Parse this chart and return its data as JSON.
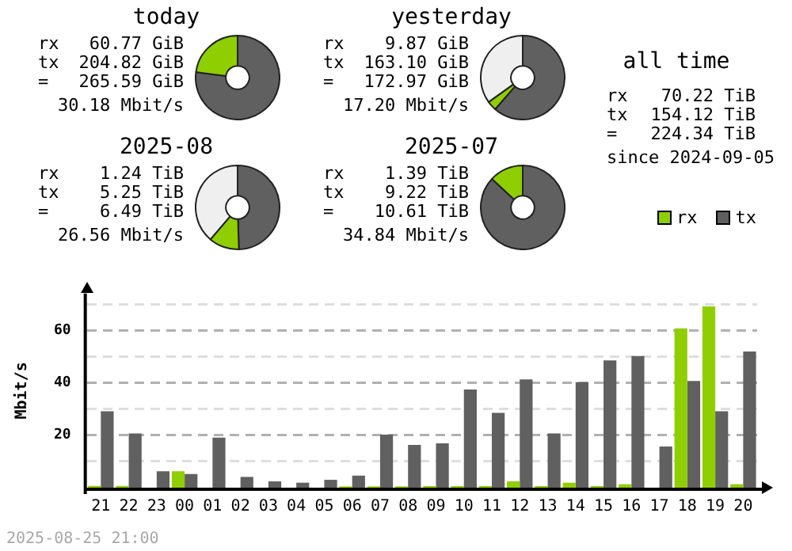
{
  "chart_data": [
    {
      "type": "donut",
      "title": "today",
      "categories": [
        null,
        null,
        null
      ],
      "values": [
        77.1,
        22.9,
        0
      ],
      "colors": [
        "#606060",
        "#8fce00",
        "#efefef"
      ],
      "annotations": [
        "rx",
        "60.77 GiB",
        "tx",
        "204.82 GiB",
        "=",
        "265.59 GiB",
        "30.18 Mbit/s"
      ]
    },
    {
      "type": "donut",
      "title": "yesterday",
      "categories": [
        null,
        null,
        null
      ],
      "values": [
        61.4,
        3.7,
        34.9
      ],
      "colors": [
        "#606060",
        "#8fce00",
        "#efefef"
      ],
      "annotations": [
        "rx",
        "9.87 GiB",
        "tx",
        "163.10 GiB",
        "=",
        "172.97 GiB",
        "17.20 Mbit/s"
      ]
    },
    {
      "type": "other",
      "title": "all time",
      "annotations": [
        "rx",
        "70.22 TiB",
        "tx",
        "154.12 TiB",
        "=",
        "224.34 TiB",
        "since 2024-09-05"
      ]
    },
    {
      "type": "donut",
      "title": "2025-08",
      "categories": [
        null,
        null,
        null
      ],
      "values": [
        49.5,
        11.7,
        38.8
      ],
      "colors": [
        "#606060",
        "#8fce00",
        "#efefef"
      ],
      "annotations": [
        "rx",
        "1.24 TiB",
        "tx",
        "5.25 TiB",
        "=",
        "6.49 TiB",
        "26.56 Mbit/s"
      ]
    },
    {
      "type": "donut",
      "title": "2025-07",
      "categories": [
        null,
        null,
        null
      ],
      "values": [
        86.9,
        13.1,
        0
      ],
      "colors": [
        "#606060",
        "#8fce00",
        "#efefef"
      ],
      "annotations": [
        "rx",
        "1.39 TiB",
        "tx",
        "9.22 TiB",
        "=",
        "10.61 TiB",
        "34.84 Mbit/s"
      ]
    },
    {
      "type": "bar",
      "ylabel": "Mbit/s",
      "legend": "top right",
      "grid": "y",
      "categories": [
        "21",
        "22",
        "23",
        "00",
        "01",
        "02",
        "03",
        "04",
        "05",
        "06",
        "07",
        "08",
        "09",
        "10",
        "11",
        "12",
        "13",
        "14",
        "15",
        "16",
        "17",
        "18",
        "19",
        "20"
      ],
      "ylim": [
        0,
        74
      ],
      "yticks": [
        {
          "value": 0,
          "label": null
        },
        {
          "value": 10,
          "label": null
        },
        20,
        {
          "value": 30,
          "label": null
        },
        40,
        {
          "value": 50,
          "label": null
        },
        60,
        {
          "value": 70,
          "label": null
        }
      ],
      "series": [
        {
          "name": "rx",
          "color": "#8fce00",
          "values": [
            0.7,
            0.7,
            0,
            6.3,
            0,
            0,
            0,
            0,
            0,
            0.5,
            0.5,
            0.5,
            0.6,
            0.6,
            0.6,
            2.4,
            0.6,
            1.9,
            0.6,
            1.3,
            0,
            60.7,
            69.1,
            1.3
          ]
        },
        {
          "name": "tx",
          "color": "#606060",
          "values": [
            29.1,
            20.7,
            6.3,
            5.2,
            19.1,
            4.1,
            2.4,
            1.9,
            3.0,
            4.6,
            20.2,
            16.3,
            16.9,
            37.4,
            28.5,
            41.3,
            20.7,
            40.2,
            48.5,
            50.2,
            15.7,
            40.7,
            29.1,
            51.9
          ]
        }
      ],
      "annotations": [
        "2025-08-25 21:00"
      ]
    }
  ]
}
